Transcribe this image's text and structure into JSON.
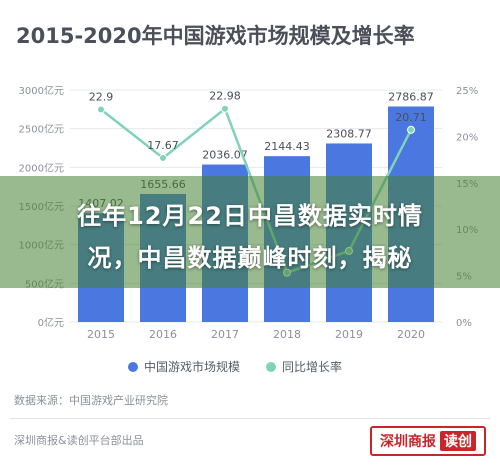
{
  "title": "2015-2020年中国游戏市场规模及增长率",
  "colors": {
    "bar": "#4a78e0",
    "line": "#7fd3b6",
    "text": "#4a4f5a",
    "overlay": "#4b8737"
  },
  "chart_data": {
    "type": "bar",
    "title": "2015-2020年中国游戏市场规模及增长率",
    "categories": [
      "2015",
      "2016",
      "2017",
      "2018",
      "2019",
      "2020"
    ],
    "series": [
      {
        "name": "中国游戏市场规模",
        "type": "bar",
        "axis": "left",
        "values": [
          1407.02,
          1655.66,
          2036.07,
          2144.43,
          2308.77,
          2786.87
        ],
        "labels": [
          "1407.02",
          "1655.66",
          "2036.07",
          "2144.43",
          "2308.77",
          "2786.87"
        ]
      },
      {
        "name": "同比增长率",
        "type": "line",
        "axis": "right",
        "values": [
          22.9,
          17.67,
          22.98,
          5.32,
          7.66,
          20.71
        ],
        "labels": [
          "22.9",
          "17.67",
          "22.98",
          "",
          "",
          "20.71"
        ]
      }
    ],
    "y_left": {
      "ylim": [
        0,
        3000
      ],
      "ticks": [
        "0亿元",
        "500亿元",
        "1000亿元",
        "1500亿元",
        "2000亿元",
        "2500亿元",
        "3000亿元"
      ]
    },
    "y_right": {
      "ylim": [
        0,
        25
      ],
      "ticks": [
        "0%",
        "5%",
        "10%",
        "15%",
        "20%",
        "25%"
      ]
    },
    "grid": true,
    "legend": "bottom"
  },
  "legend": {
    "bar_label": "中国游戏市场规模",
    "line_label": "同比增长率"
  },
  "source": "数据来源：中国游戏产业研究院",
  "footer": {
    "left": "深圳商报&读创平台部出品",
    "logo_text": "深圳商报",
    "logo_stamp": "读创"
  },
  "overlay": {
    "line1": "往年12月22日中昌数据实时情",
    "line2": "况，中昌数据巅峰时刻，揭秘"
  }
}
